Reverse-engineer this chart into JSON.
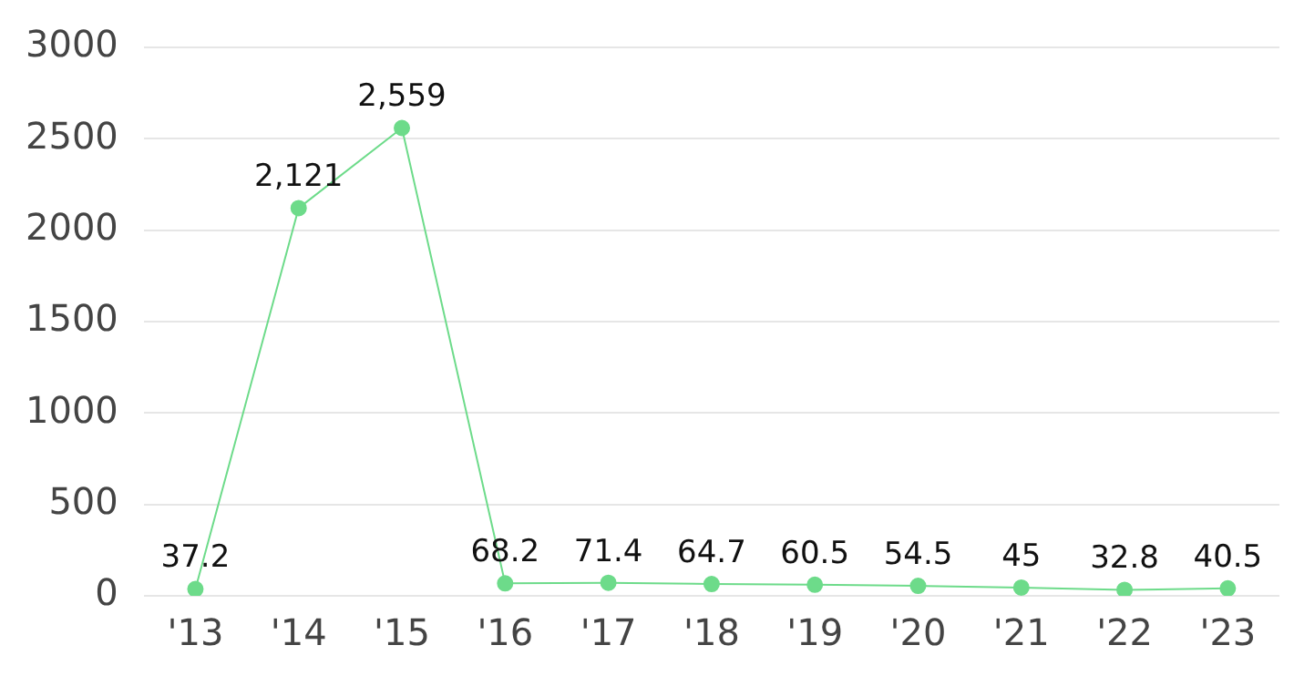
{
  "chart_data": {
    "type": "line",
    "categories": [
      "'13",
      "'14",
      "'15",
      "'16",
      "'17",
      "'18",
      "'19",
      "'20",
      "'21",
      "'22",
      "'23"
    ],
    "series": [
      {
        "color": "#6ddb8a",
        "values": [
          37.2,
          2121,
          2559,
          68.2,
          71.4,
          64.7,
          60.5,
          54.5,
          45,
          32.8,
          40.5
        ]
      }
    ],
    "value_labels": [
      "37.2",
      "2,121",
      "2,559",
      "68.2",
      "71.4",
      "64.7",
      "60.5",
      "54.5",
      "45",
      "32.8",
      "40.5"
    ],
    "ylim": [
      0,
      3000
    ],
    "yticks": [
      0,
      500,
      1000,
      1500,
      2000,
      2500,
      3000
    ],
    "grid": "y",
    "legend": false,
    "marker": "circle"
  }
}
